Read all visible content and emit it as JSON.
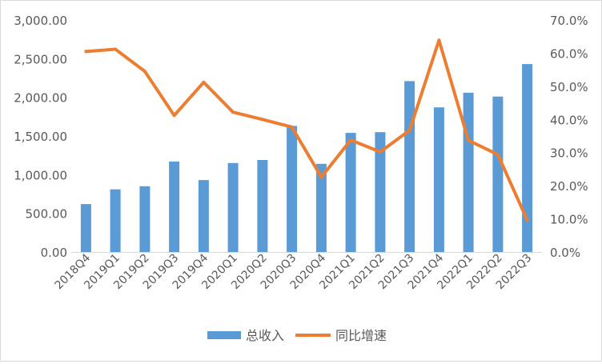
{
  "chart_data": {
    "type": "bar",
    "categories": [
      "2018Q4",
      "2019Q1",
      "2019Q2",
      "2019Q3",
      "2019Q4",
      "2020Q1",
      "2020Q2",
      "2020Q3",
      "2020Q4",
      "2021Q1",
      "2021Q2",
      "2021Q3",
      "2021Q4",
      "2022Q1",
      "2022Q2",
      "2022Q3"
    ],
    "series": [
      {
        "name": "总收入",
        "type": "bar",
        "axis": "left",
        "color": "#5b9bd5",
        "values": [
          620,
          810,
          850,
          1170,
          930,
          1150,
          1190,
          1630,
          1140,
          1540,
          1550,
          2210,
          1870,
          2060,
          2010,
          2430
        ]
      },
      {
        "name": "同比增速",
        "type": "line",
        "axis": "right",
        "color": "#ed7d31",
        "values": [
          60.5,
          61.2,
          54.5,
          41.2,
          51.2,
          42.2,
          40.0,
          37.7,
          22.6,
          33.8,
          30.2,
          36.7,
          63.9,
          33.7,
          29.4,
          9.6
        ]
      }
    ],
    "y_left": {
      "ylim": [
        0,
        3000
      ],
      "ticks": [
        "0.00",
        "500.00",
        "1,000.00",
        "1,500.00",
        "2,000.00",
        "2,500.00",
        "3,000.00"
      ]
    },
    "y_right": {
      "ylim": [
        0,
        70
      ],
      "ticks": [
        "0.0%",
        "10.0%",
        "20.0%",
        "30.0%",
        "40.0%",
        "50.0%",
        "60.0%",
        "70.0%"
      ]
    },
    "grid": false,
    "legend_position": "bottom"
  }
}
